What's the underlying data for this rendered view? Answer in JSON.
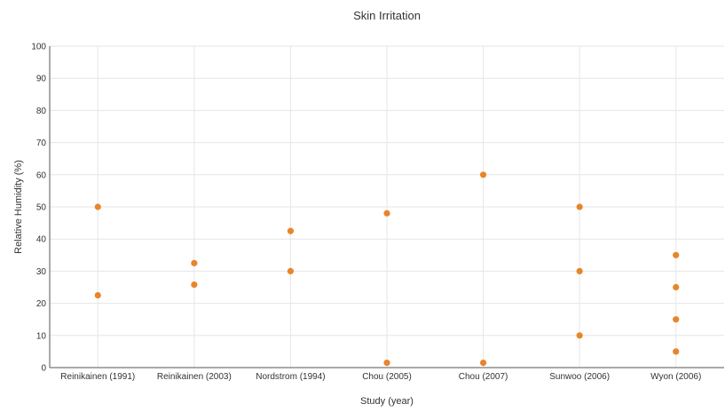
{
  "chart_data": {
    "type": "scatter",
    "title": "Skin Irritation",
    "xlabel": "Study (year)",
    "ylabel": "Relative Humidity (%)",
    "ylim": [
      0,
      100
    ],
    "yticks": [
      0,
      10,
      20,
      30,
      40,
      50,
      60,
      70,
      80,
      90,
      100
    ],
    "categories": [
      "Reinikainen (1991)",
      "Reinikainen (2003)",
      "Nordstrom (1994)",
      "Chou (2005)",
      "Chou (2007)",
      "Sunwoo (2006)",
      "Wyon (2006)"
    ],
    "points": [
      {
        "x": "Reinikainen (1991)",
        "y": 50
      },
      {
        "x": "Reinikainen (1991)",
        "y": 22.5
      },
      {
        "x": "Reinikainen (2003)",
        "y": 32.5
      },
      {
        "x": "Reinikainen (2003)",
        "y": 25.8
      },
      {
        "x": "Nordstrom (1994)",
        "y": 42.5
      },
      {
        "x": "Nordstrom (1994)",
        "y": 30
      },
      {
        "x": "Chou (2005)",
        "y": 48
      },
      {
        "x": "Chou (2005)",
        "y": 1.5
      },
      {
        "x": "Chou (2007)",
        "y": 60
      },
      {
        "x": "Chou (2007)",
        "y": 1.5
      },
      {
        "x": "Sunwoo (2006)",
        "y": 50
      },
      {
        "x": "Sunwoo (2006)",
        "y": 30
      },
      {
        "x": "Sunwoo (2006)",
        "y": 10
      },
      {
        "x": "Wyon (2006)",
        "y": 35
      },
      {
        "x": "Wyon (2006)",
        "y": 25
      },
      {
        "x": "Wyon (2006)",
        "y": 15
      },
      {
        "x": "Wyon (2006)",
        "y": 5
      }
    ],
    "marker_color": "#e8852a",
    "grid": true,
    "legend": "none"
  }
}
